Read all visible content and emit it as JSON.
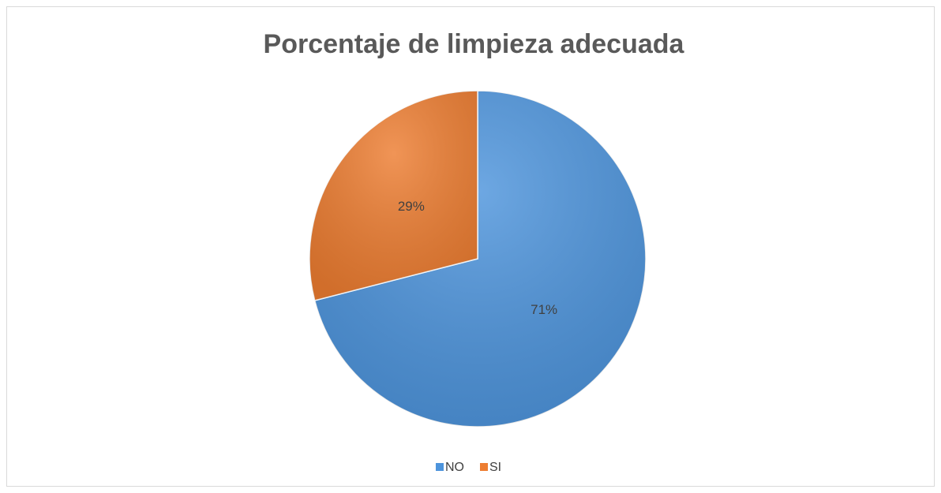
{
  "chart_data": {
    "type": "pie",
    "title": "Porcentaje de limpieza adecuada",
    "categories": [
      "NO",
      "SI"
    ],
    "values": [
      71,
      29
    ],
    "value_labels": [
      "71%",
      "29%"
    ],
    "colors": [
      "#4d94dc",
      "#ed7d31"
    ],
    "legend": "bottom"
  }
}
